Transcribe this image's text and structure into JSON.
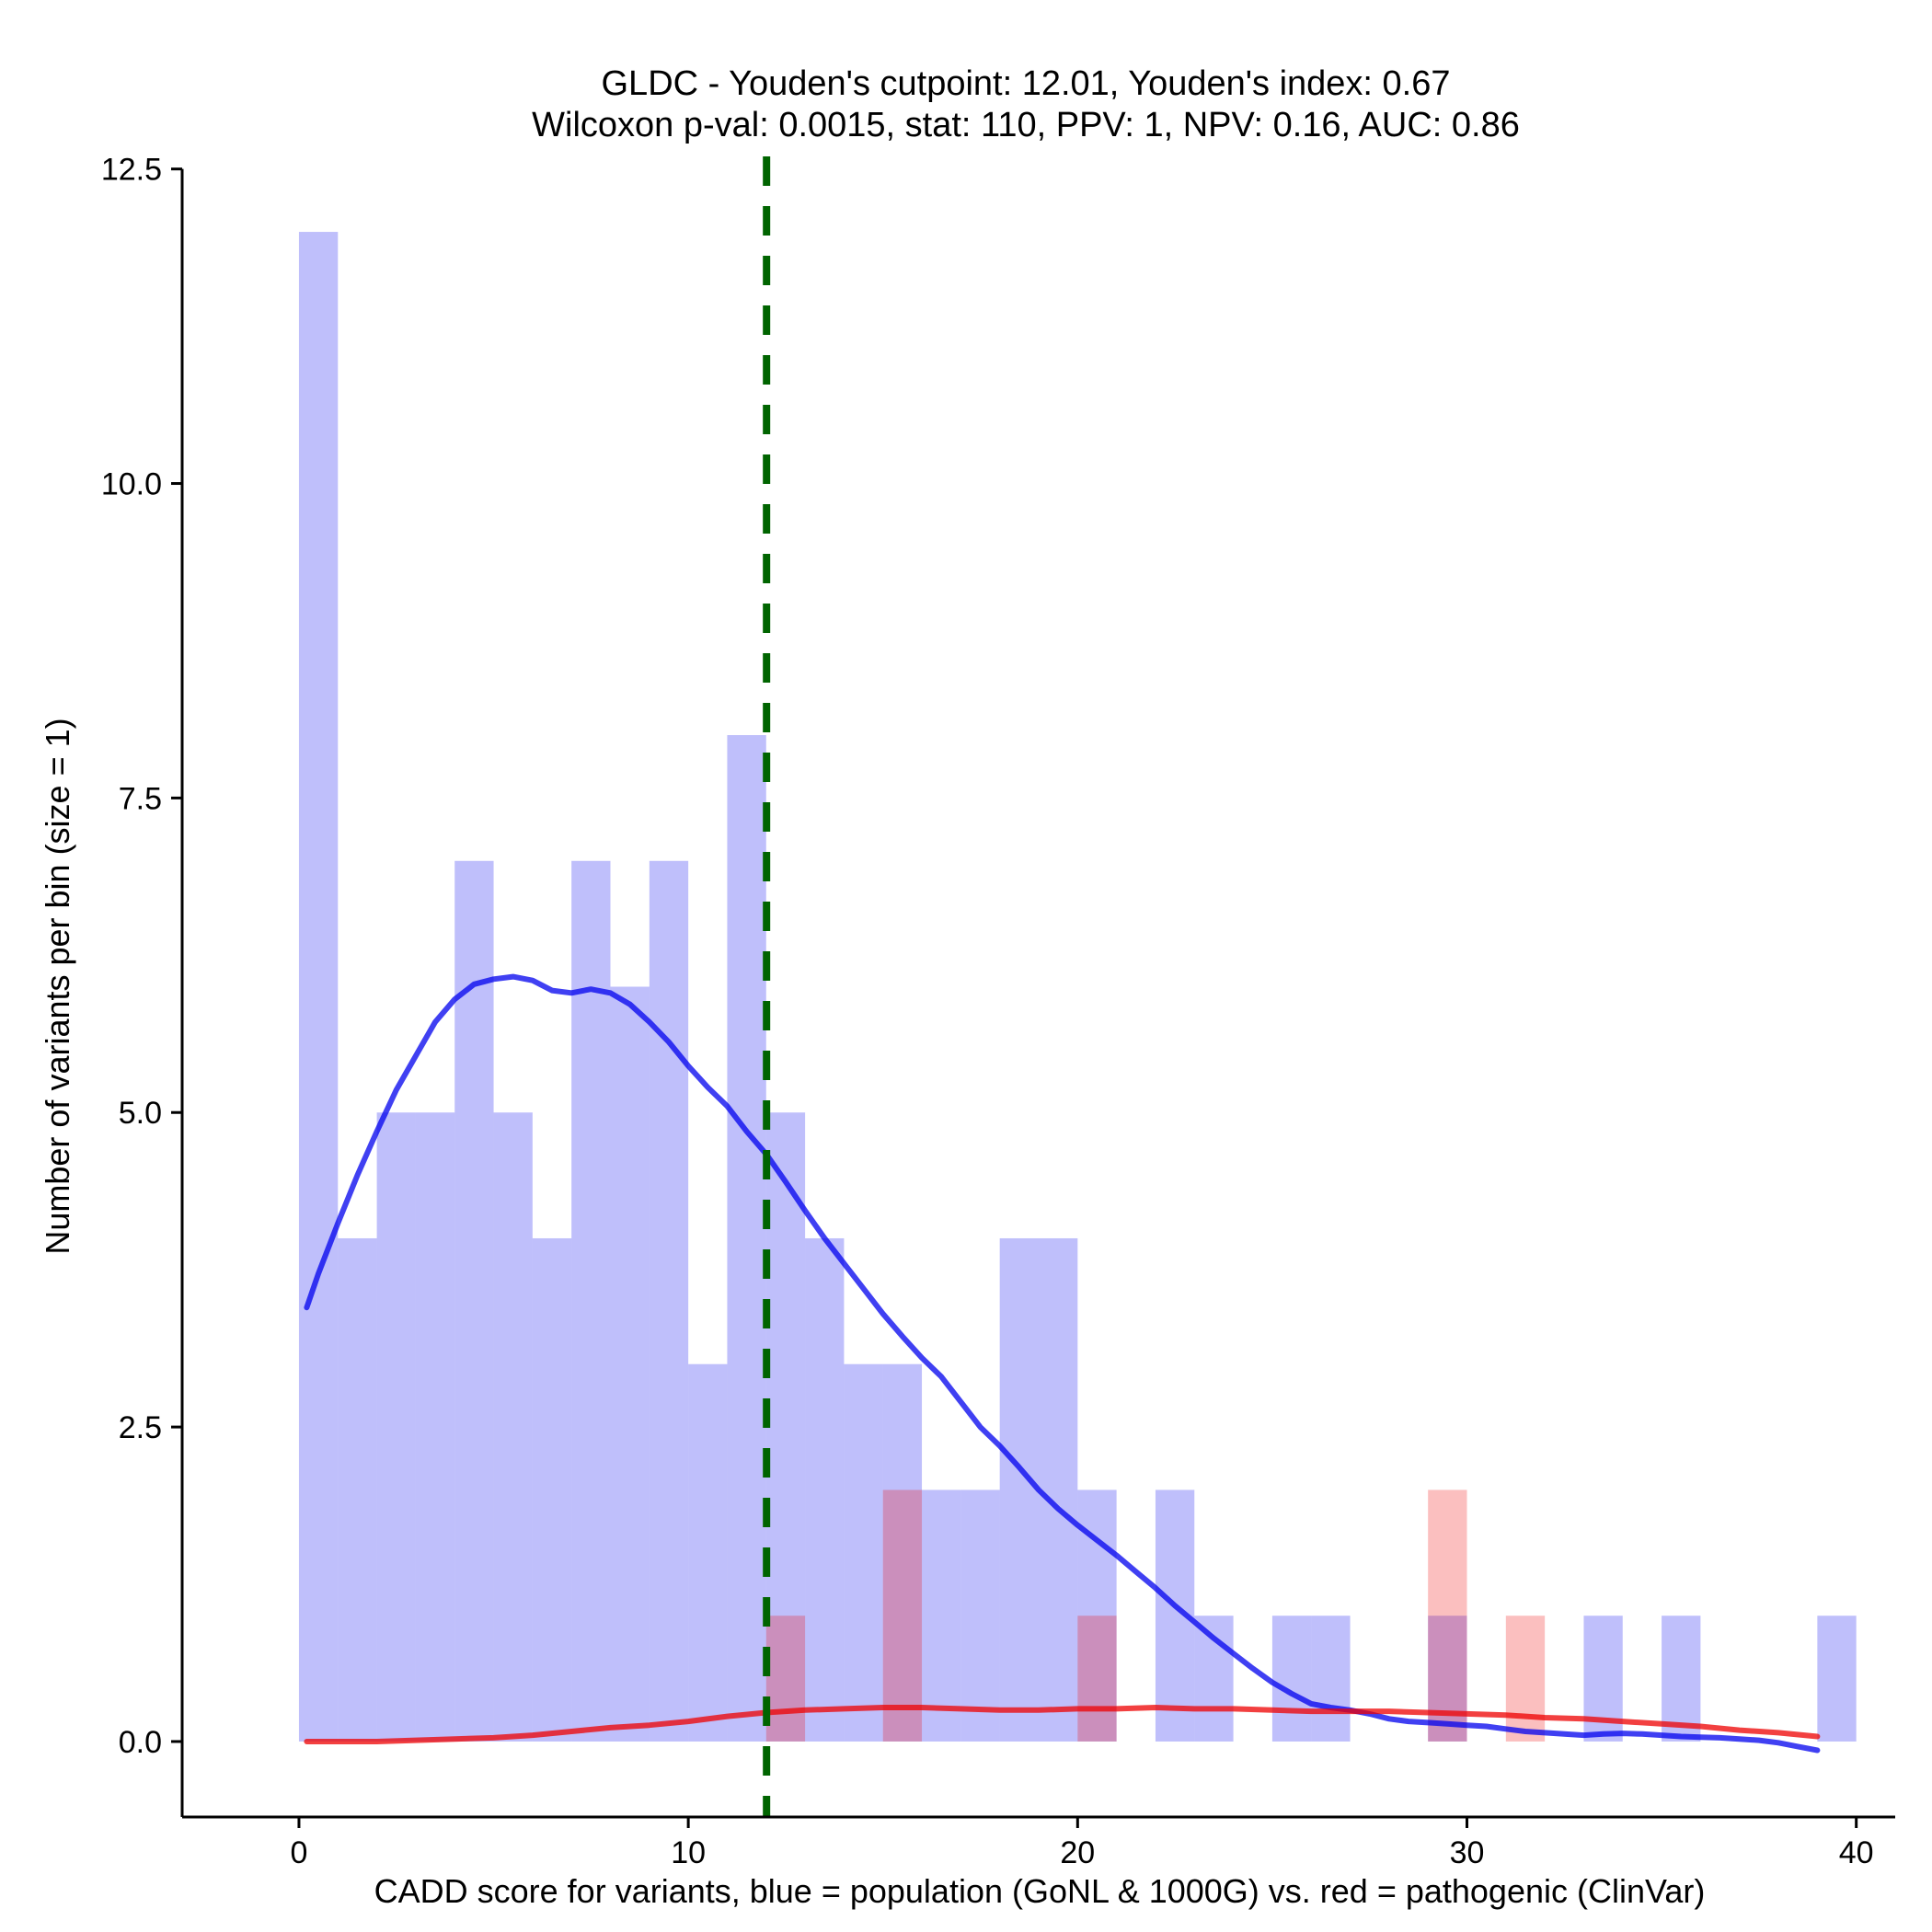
{
  "chart_data": {
    "type": "bar",
    "title": "GLDC - Youden's cutpoint: 12.01, Youden's index: 0.67",
    "subtitle": "Wilcoxon p-val: 0.0015, stat: 110, PPV: 1, NPV: 0.16, AUC: 0.86",
    "xlabel": "CADD score for variants, blue = population (GoNL & 1000G) vs. red = pathogenic (ClinVar)",
    "ylabel": "Number of variants per bin (size = 1)",
    "xlim": [
      -3,
      41
    ],
    "ylim": [
      -0.6,
      12.6
    ],
    "xticks": [
      0,
      10,
      20,
      30,
      40
    ],
    "xtick_labels": [
      "0",
      "10",
      "20",
      "30",
      "40"
    ],
    "yticks": [
      0,
      2.5,
      5,
      7.5,
      10,
      12.5
    ],
    "ytick_labels": [
      "0.0",
      "2.5",
      "5.0",
      "7.5",
      "10.0",
      "12.5"
    ],
    "bin_width": 1,
    "cutpoint": 12.01,
    "colors": {
      "population": "#0000ee",
      "pathogenic": "#ee0000",
      "cutpoint": "#006400"
    },
    "series": [
      {
        "name": "population",
        "bins": [
          [
            0,
            12
          ],
          [
            1,
            4
          ],
          [
            2,
            5
          ],
          [
            3,
            5
          ],
          [
            4,
            7
          ],
          [
            5,
            5
          ],
          [
            6,
            4
          ],
          [
            7,
            7
          ],
          [
            8,
            6
          ],
          [
            9,
            7
          ],
          [
            10,
            3
          ],
          [
            11,
            8
          ],
          [
            12,
            5
          ],
          [
            13,
            4
          ],
          [
            14,
            3
          ],
          [
            15,
            3
          ],
          [
            16,
            2
          ],
          [
            17,
            2
          ],
          [
            18,
            4
          ],
          [
            19,
            4
          ],
          [
            20,
            2
          ],
          [
            22,
            2
          ],
          [
            23,
            1
          ],
          [
            25,
            1
          ],
          [
            26,
            1
          ],
          [
            29,
            1
          ],
          [
            33,
            1
          ],
          [
            35,
            1
          ],
          [
            39,
            1
          ]
        ],
        "density": [
          [
            0.2,
            3.45
          ],
          [
            0.5,
            3.72
          ],
          [
            1,
            4.12
          ],
          [
            1.5,
            4.5
          ],
          [
            2,
            4.85
          ],
          [
            2.5,
            5.18
          ],
          [
            3,
            5.45
          ],
          [
            3.5,
            5.72
          ],
          [
            4,
            5.9
          ],
          [
            4.5,
            6.02
          ],
          [
            5,
            6.06
          ],
          [
            5.5,
            6.08
          ],
          [
            6,
            6.05
          ],
          [
            6.5,
            5.97
          ],
          [
            7,
            5.95
          ],
          [
            7.5,
            5.98
          ],
          [
            8,
            5.95
          ],
          [
            8.5,
            5.86
          ],
          [
            9,
            5.72
          ],
          [
            9.5,
            5.56
          ],
          [
            10,
            5.37
          ],
          [
            10.5,
            5.2
          ],
          [
            11,
            5.05
          ],
          [
            11.5,
            4.85
          ],
          [
            12,
            4.67
          ],
          [
            12.5,
            4.45
          ],
          [
            13,
            4.22
          ],
          [
            13.5,
            4.0
          ],
          [
            14,
            3.8
          ],
          [
            14.5,
            3.6
          ],
          [
            15,
            3.4
          ],
          [
            15.5,
            3.22
          ],
          [
            16,
            3.05
          ],
          [
            16.5,
            2.9
          ],
          [
            17,
            2.7
          ],
          [
            17.5,
            2.5
          ],
          [
            18,
            2.35
          ],
          [
            18.5,
            2.18
          ],
          [
            19,
            2.0
          ],
          [
            19.5,
            1.85
          ],
          [
            20,
            1.72
          ],
          [
            20.5,
            1.6
          ],
          [
            21,
            1.48
          ],
          [
            21.5,
            1.35
          ],
          [
            22,
            1.22
          ],
          [
            22.5,
            1.08
          ],
          [
            23,
            0.95
          ],
          [
            23.5,
            0.82
          ],
          [
            24,
            0.7
          ],
          [
            24.5,
            0.58
          ],
          [
            25,
            0.47
          ],
          [
            25.5,
            0.38
          ],
          [
            26,
            0.3
          ],
          [
            26.5,
            0.27
          ],
          [
            27,
            0.25
          ],
          [
            27.5,
            0.22
          ],
          [
            28,
            0.18
          ],
          [
            28.5,
            0.16
          ],
          [
            29,
            0.15
          ],
          [
            29.5,
            0.14
          ],
          [
            30,
            0.13
          ],
          [
            30.5,
            0.12
          ],
          [
            31,
            0.1
          ],
          [
            31.5,
            0.08
          ],
          [
            32,
            0.07
          ],
          [
            32.5,
            0.06
          ],
          [
            33,
            0.05
          ],
          [
            33.5,
            0.06
          ],
          [
            34,
            0.065
          ],
          [
            34.5,
            0.06
          ],
          [
            35,
            0.05
          ],
          [
            35.5,
            0.04
          ],
          [
            36,
            0.035
          ],
          [
            36.5,
            0.03
          ],
          [
            37,
            0.02
          ],
          [
            37.5,
            0.01
          ],
          [
            38,
            -0.01
          ],
          [
            38.5,
            -0.04
          ],
          [
            39,
            -0.07
          ]
        ]
      },
      {
        "name": "pathogenic",
        "bins": [
          [
            12,
            1
          ],
          [
            15,
            2
          ],
          [
            20,
            1
          ],
          [
            29,
            2
          ],
          [
            31,
            1
          ]
        ],
        "density": [
          [
            0.2,
            0.0
          ],
          [
            1,
            0.0
          ],
          [
            2,
            0.0
          ],
          [
            3,
            0.01
          ],
          [
            4,
            0.02
          ],
          [
            5,
            0.03
          ],
          [
            6,
            0.05
          ],
          [
            7,
            0.08
          ],
          [
            8,
            0.11
          ],
          [
            9,
            0.13
          ],
          [
            10,
            0.16
          ],
          [
            11,
            0.2
          ],
          [
            12,
            0.23
          ],
          [
            13,
            0.25
          ],
          [
            14,
            0.26
          ],
          [
            15,
            0.27
          ],
          [
            16,
            0.27
          ],
          [
            17,
            0.26
          ],
          [
            18,
            0.25
          ],
          [
            19,
            0.25
          ],
          [
            20,
            0.26
          ],
          [
            21,
            0.26
          ],
          [
            22,
            0.27
          ],
          [
            23,
            0.26
          ],
          [
            24,
            0.26
          ],
          [
            25,
            0.25
          ],
          [
            26,
            0.24
          ],
          [
            27,
            0.24
          ],
          [
            28,
            0.24
          ],
          [
            29,
            0.23
          ],
          [
            30,
            0.22
          ],
          [
            31,
            0.21
          ],
          [
            32,
            0.19
          ],
          [
            33,
            0.18
          ],
          [
            34,
            0.16
          ],
          [
            35,
            0.14
          ],
          [
            36,
            0.12
          ],
          [
            37,
            0.09
          ],
          [
            38,
            0.07
          ],
          [
            39,
            0.04
          ]
        ]
      }
    ]
  }
}
